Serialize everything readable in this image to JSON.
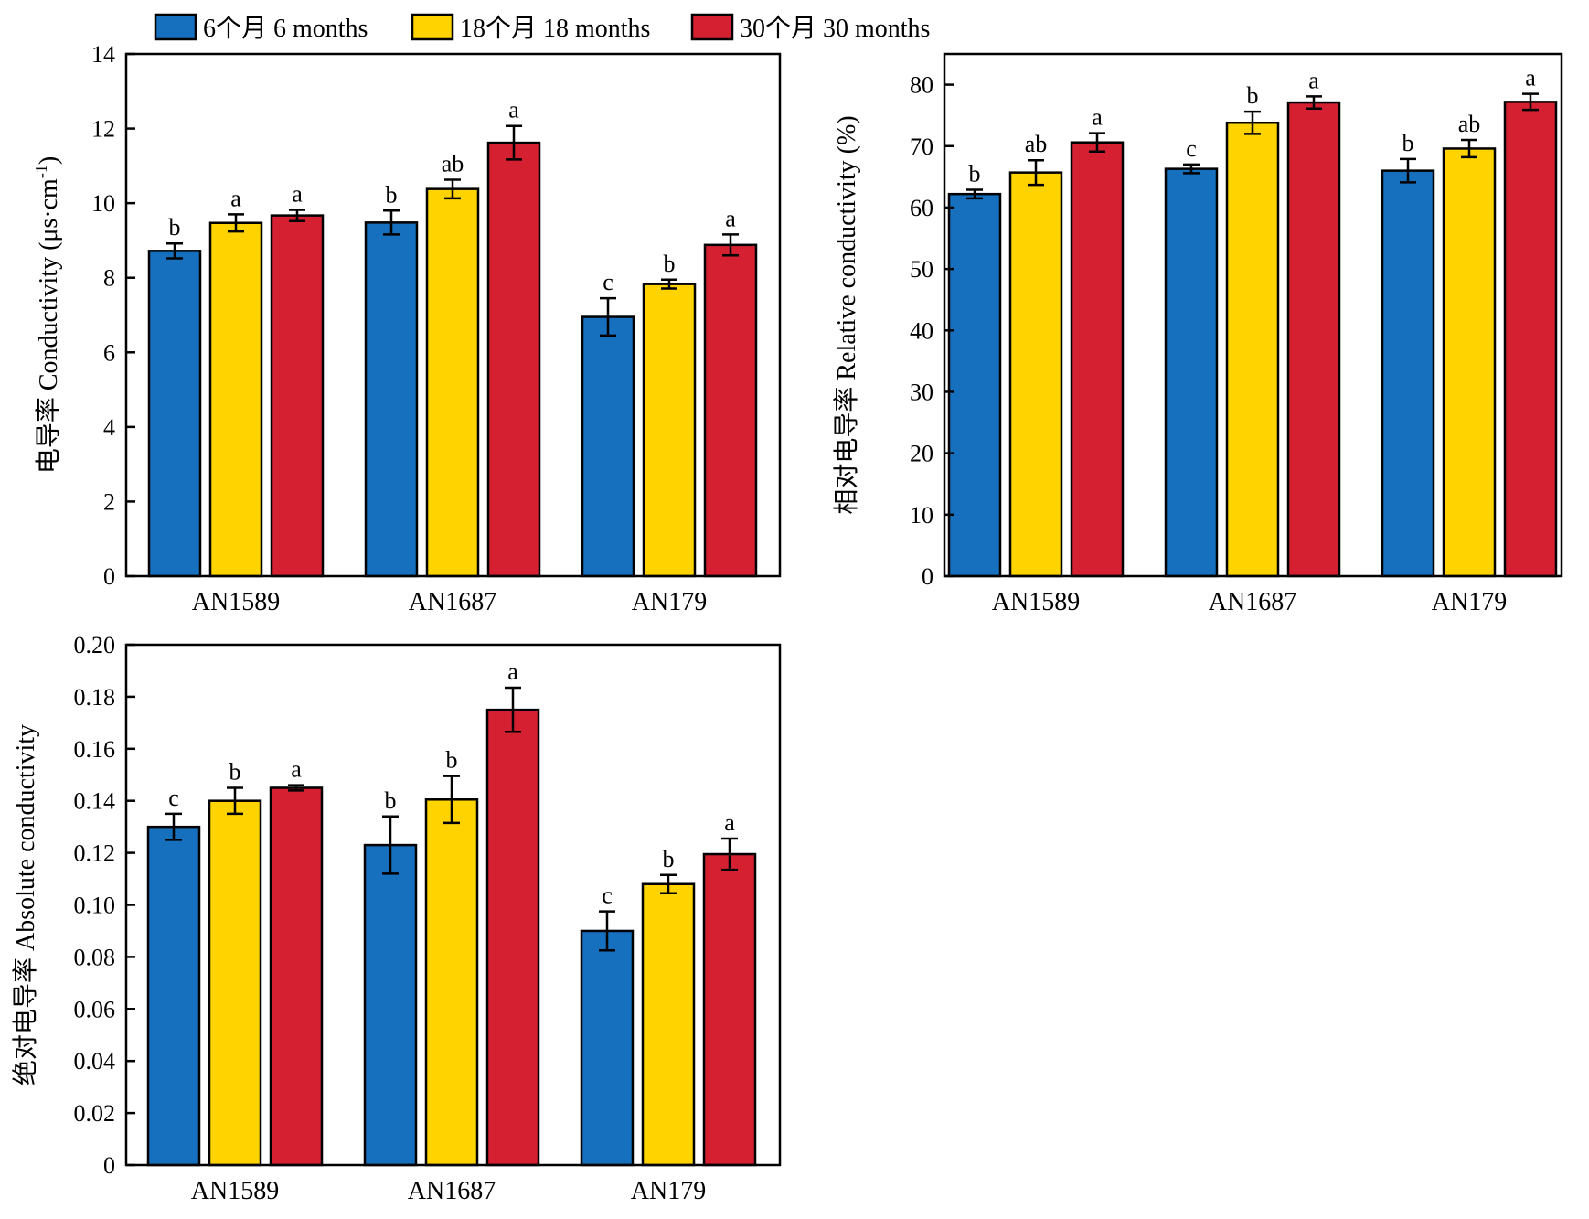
{
  "legend": {
    "items": [
      {
        "label": "6个月 6 months",
        "color": "#1670BE"
      },
      {
        "label": "18个月 18 months",
        "color": "#FFD300"
      },
      {
        "label": "30个月 30 months",
        "color": "#D42030"
      }
    ]
  },
  "chart_data": [
    {
      "type": "bar",
      "title": "",
      "xlabel": "",
      "ylabel": "电导率 Conductivity (μs·cm",
      "ylabel_sup": "-1",
      "ylabel_tail": ")",
      "categories": [
        "AN1589",
        "AN1687",
        "AN179"
      ],
      "ylim": [
        0,
        14
      ],
      "yticks": [
        0,
        2,
        4,
        6,
        8,
        10,
        12,
        14
      ],
      "tick_labels": [
        "0",
        "2",
        "4",
        "6",
        "8",
        "10",
        "12",
        "14"
      ],
      "series": [
        {
          "name": "6个月 6 months",
          "values": [
            8.72,
            9.48,
            6.95
          ],
          "errors": [
            0.2,
            0.32,
            0.5
          ],
          "letters": [
            "b",
            "b",
            "c"
          ]
        },
        {
          "name": "18个月 18 months",
          "values": [
            9.47,
            10.38,
            7.83
          ],
          "errors": [
            0.23,
            0.25,
            0.12
          ],
          "letters": [
            "a",
            "ab",
            "b"
          ]
        },
        {
          "name": "30个月 30 months",
          "values": [
            9.67,
            11.62,
            8.88
          ],
          "errors": [
            0.15,
            0.45,
            0.28
          ],
          "letters": [
            "a",
            "a",
            "a"
          ]
        }
      ]
    },
    {
      "type": "bar",
      "title": "",
      "xlabel": "",
      "ylabel": "相对电导率 Relative conductivity (%)",
      "categories": [
        "AN1589",
        "AN1687",
        "AN179"
      ],
      "ylim": [
        0,
        85
      ],
      "yticks": [
        0,
        10,
        20,
        30,
        40,
        50,
        60,
        70,
        80
      ],
      "tick_labels": [
        "0",
        "10",
        "20",
        "30",
        "40",
        "50",
        "60",
        "70",
        "80"
      ],
      "series": [
        {
          "name": "6个月 6 months",
          "values": [
            62.2,
            66.3,
            66.0
          ],
          "errors": [
            0.7,
            0.7,
            1.9
          ],
          "letters": [
            "b",
            "c",
            "b"
          ]
        },
        {
          "name": "18个月 18 months",
          "values": [
            65.7,
            73.8,
            69.6
          ],
          "errors": [
            2.0,
            1.8,
            1.4
          ],
          "letters": [
            "ab",
            "b",
            "ab"
          ]
        },
        {
          "name": "30个月 30 months",
          "values": [
            70.6,
            77.1,
            77.2
          ],
          "errors": [
            1.5,
            1.0,
            1.3
          ],
          "letters": [
            "a",
            "a",
            "a"
          ]
        }
      ]
    },
    {
      "type": "bar",
      "title": "",
      "xlabel": "",
      "ylabel": "绝对电导率 Absolute conductivity",
      "categories": [
        "AN1589",
        "AN1687",
        "AN179"
      ],
      "ylim": [
        0,
        0.2
      ],
      "yticks": [
        0,
        0.02,
        0.04,
        0.06,
        0.08,
        0.1,
        0.12,
        0.14,
        0.16,
        0.18,
        0.2
      ],
      "tick_labels": [
        "0",
        "0.02",
        "0.04",
        "0.06",
        "0.08",
        "0.10",
        "0.12",
        "0.14",
        "0.16",
        "0.18",
        "0.20"
      ],
      "series": [
        {
          "name": "6个月 6 months",
          "values": [
            0.13,
            0.123,
            0.09
          ],
          "errors": [
            0.005,
            0.011,
            0.0075
          ],
          "letters": [
            "c",
            "b",
            "c"
          ]
        },
        {
          "name": "18个月 18 months",
          "values": [
            0.14,
            0.1405,
            0.108
          ],
          "errors": [
            0.005,
            0.009,
            0.0035
          ],
          "letters": [
            "b",
            "b",
            "b"
          ]
        },
        {
          "name": "30个月 30 months",
          "values": [
            0.145,
            0.175,
            0.1195
          ],
          "errors": [
            0.001,
            0.0085,
            0.006
          ],
          "letters": [
            "a",
            "a",
            "a"
          ]
        }
      ]
    }
  ]
}
